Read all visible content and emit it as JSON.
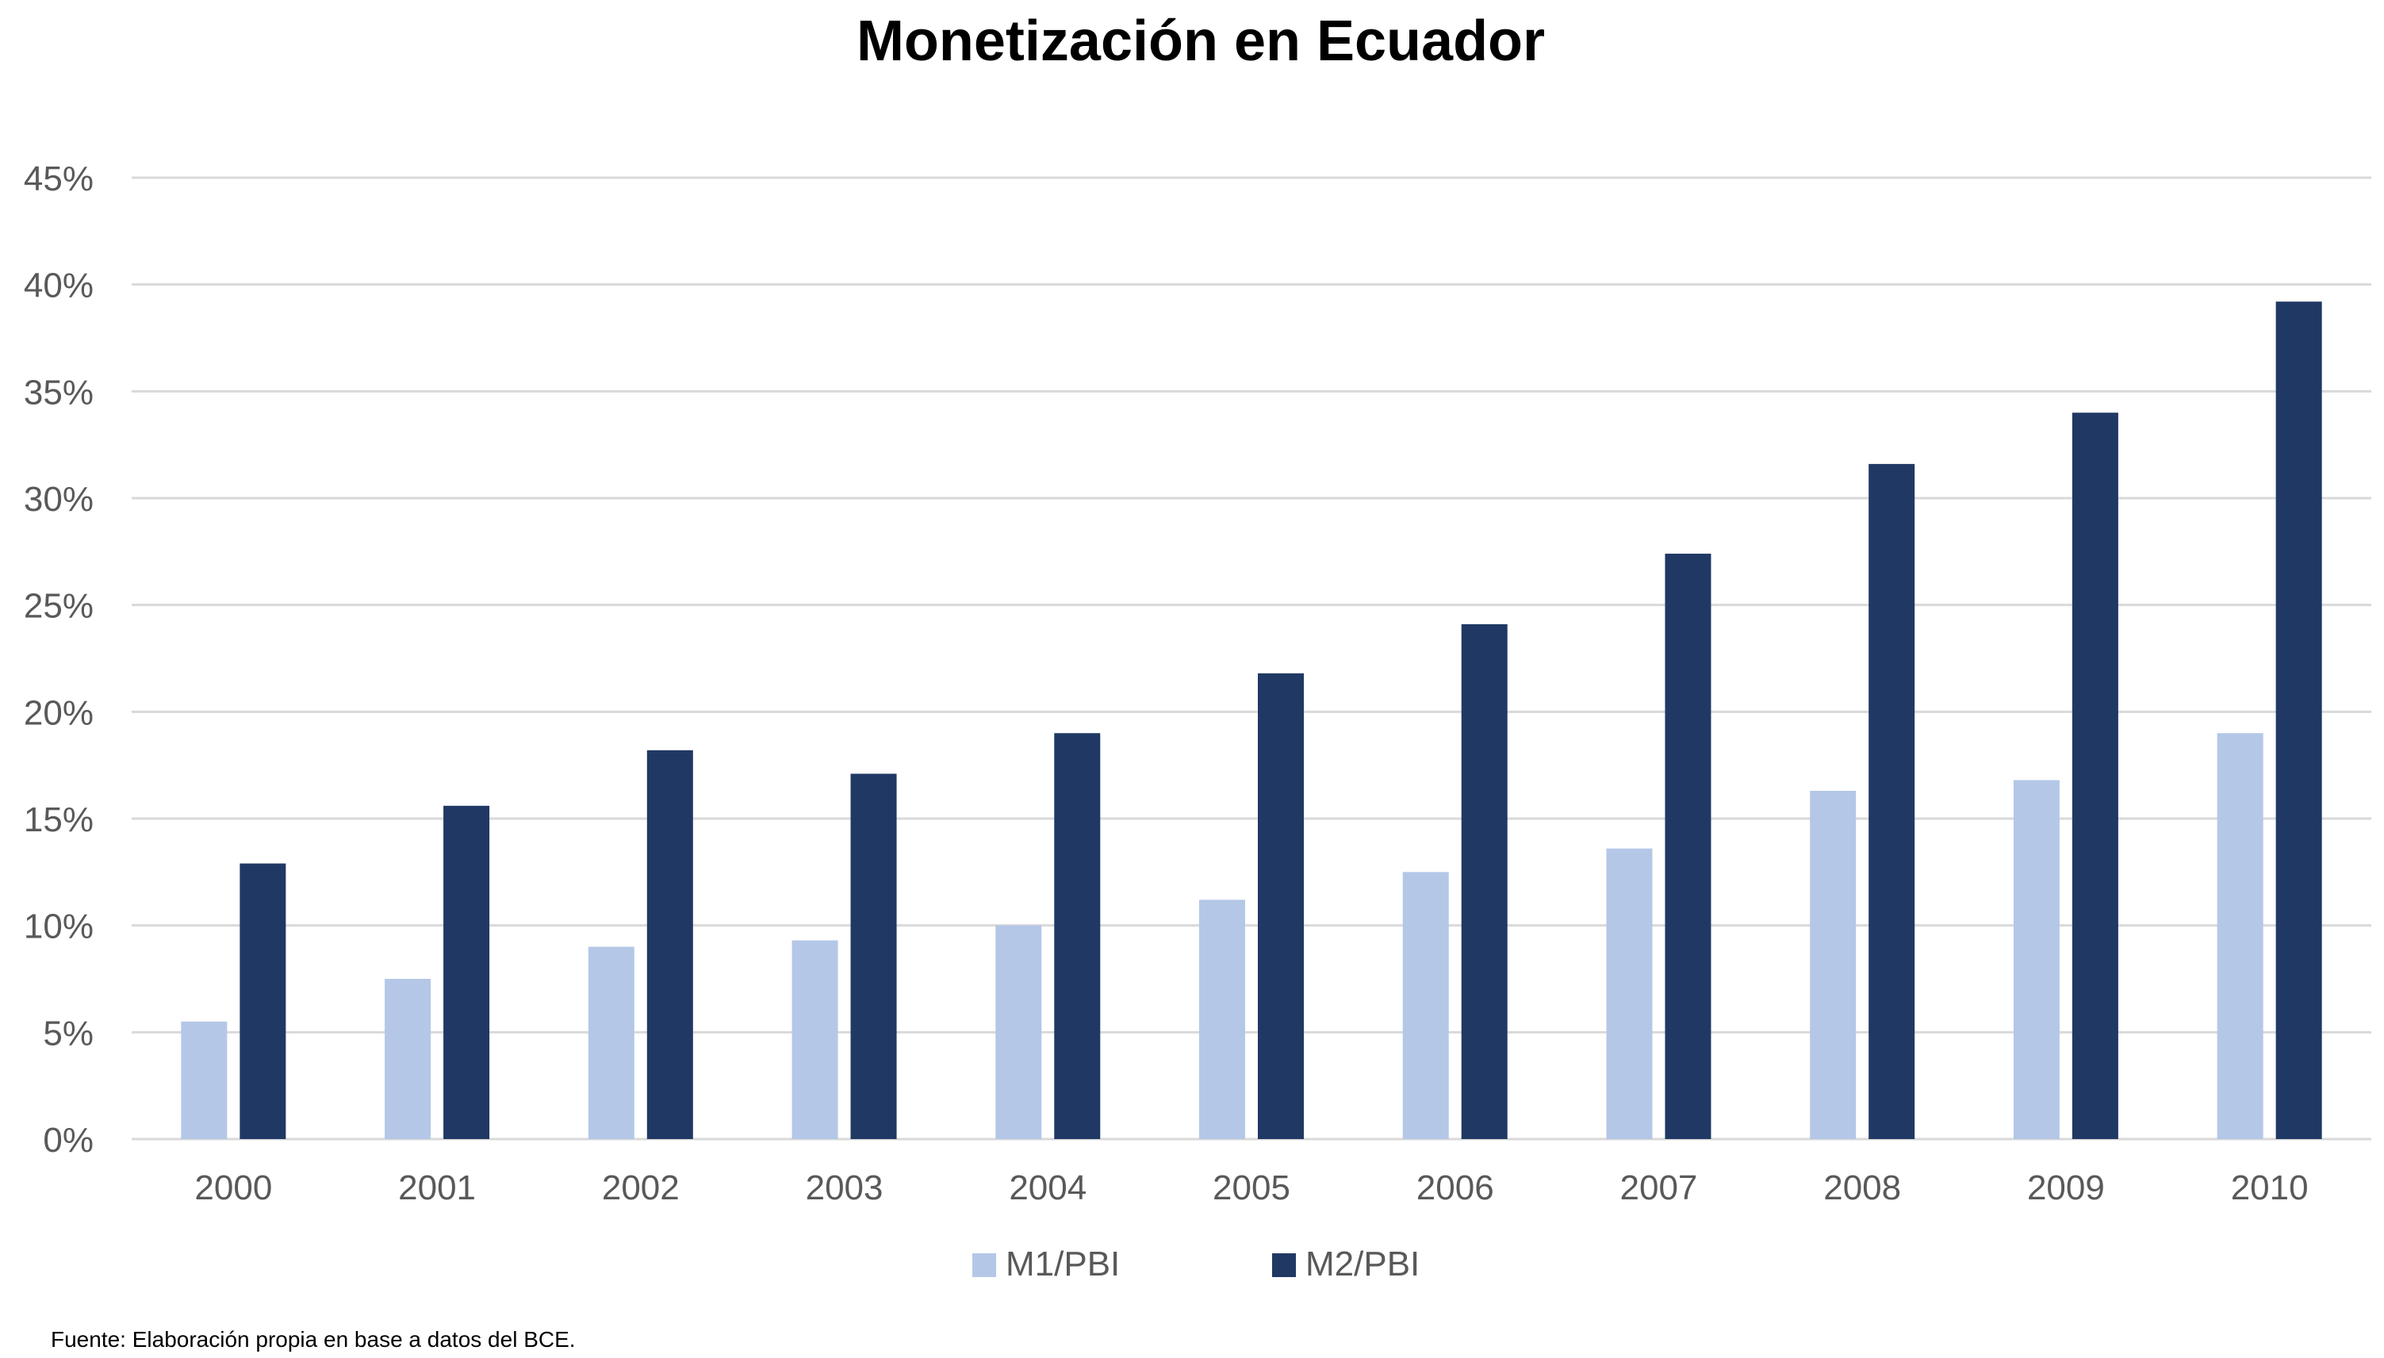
{
  "chart_data": {
    "type": "bar",
    "title": "Monetización en Ecuador",
    "categories": [
      "2000",
      "2001",
      "2002",
      "2003",
      "2004",
      "2005",
      "2006",
      "2007",
      "2008",
      "2009",
      "2010"
    ],
    "series": [
      {
        "name": "M1/PBI",
        "color": "#b4c7e7",
        "values": [
          5.5,
          7.5,
          9.0,
          9.3,
          10.0,
          11.2,
          12.5,
          13.6,
          16.3,
          16.8,
          19.0
        ]
      },
      {
        "name": "M2/PBI",
        "color": "#203864",
        "values": [
          12.9,
          15.6,
          18.2,
          17.1,
          19.0,
          21.8,
          24.1,
          27.4,
          31.6,
          34.0,
          39.2
        ]
      }
    ],
    "ylim": [
      0,
      45
    ],
    "yticks": [
      0,
      5,
      10,
      15,
      20,
      25,
      30,
      35,
      40,
      45
    ],
    "ytick_labels": [
      "0%",
      "5%",
      "10%",
      "15%",
      "20%",
      "25%",
      "30%",
      "35%",
      "40%",
      "45%"
    ],
    "xlabel": "",
    "ylabel": "",
    "grid": true,
    "gridline_color": "#d9d9d9",
    "legend_position": "bottom"
  },
  "source_note": "Fuente: Elaboración propia en base a datos del BCE."
}
